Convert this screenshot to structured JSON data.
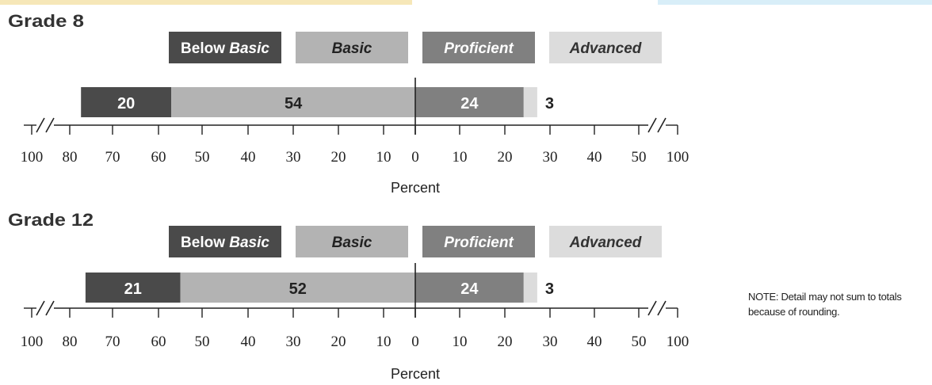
{
  "chart_data": [
    {
      "type": "bar",
      "title": "Grade 8",
      "xlabel": "Percent",
      "categories": [
        "Grade 8"
      ],
      "series": [
        {
          "name": "Below Basic",
          "values": [
            20
          ]
        },
        {
          "name": "Basic",
          "values": [
            54
          ]
        },
        {
          "name": "Proficient",
          "values": [
            24
          ]
        },
        {
          "name": "Advanced",
          "values": [
            3
          ]
        }
      ],
      "xticks": [
        "100",
        "80",
        "70",
        "60",
        "50",
        "40",
        "30",
        "20",
        "10",
        "0",
        "10",
        "20",
        "30",
        "40",
        "50",
        "100"
      ],
      "xlim": [
        -80,
        55
      ],
      "axis_breaks": true,
      "grid": false,
      "legend_placement": "top"
    },
    {
      "type": "bar",
      "title": "Grade 12",
      "xlabel": "Percent",
      "categories": [
        "Grade 12"
      ],
      "series": [
        {
          "name": "Below Basic",
          "values": [
            21
          ]
        },
        {
          "name": "Basic",
          "values": [
            52
          ]
        },
        {
          "name": "Proficient",
          "values": [
            24
          ]
        },
        {
          "name": "Advanced",
          "values": [
            3
          ]
        }
      ],
      "xticks": [
        "100",
        "80",
        "70",
        "60",
        "50",
        "40",
        "30",
        "20",
        "10",
        "0",
        "10",
        "20",
        "30",
        "40",
        "50",
        "100"
      ],
      "xlim": [
        -80,
        55
      ],
      "axis_breaks": true,
      "grid": false,
      "legend_placement": "top"
    }
  ],
  "legend": [
    {
      "plain": "Below ",
      "italic": "Basic",
      "color": "#4a4a4a",
      "text_color": "#ffffff"
    },
    {
      "plain": "",
      "italic": "Basic",
      "color": "#b3b3b3",
      "text_color": "#222222"
    },
    {
      "plain": "",
      "italic": "Proficient",
      "color": "#808080",
      "text_color": "#ffffff"
    },
    {
      "plain": "",
      "italic": "Advanced",
      "color": "#dcdcdc",
      "text_color": "#333333"
    }
  ],
  "note": "NOTE: Detail may not sum to totals because of rounding."
}
